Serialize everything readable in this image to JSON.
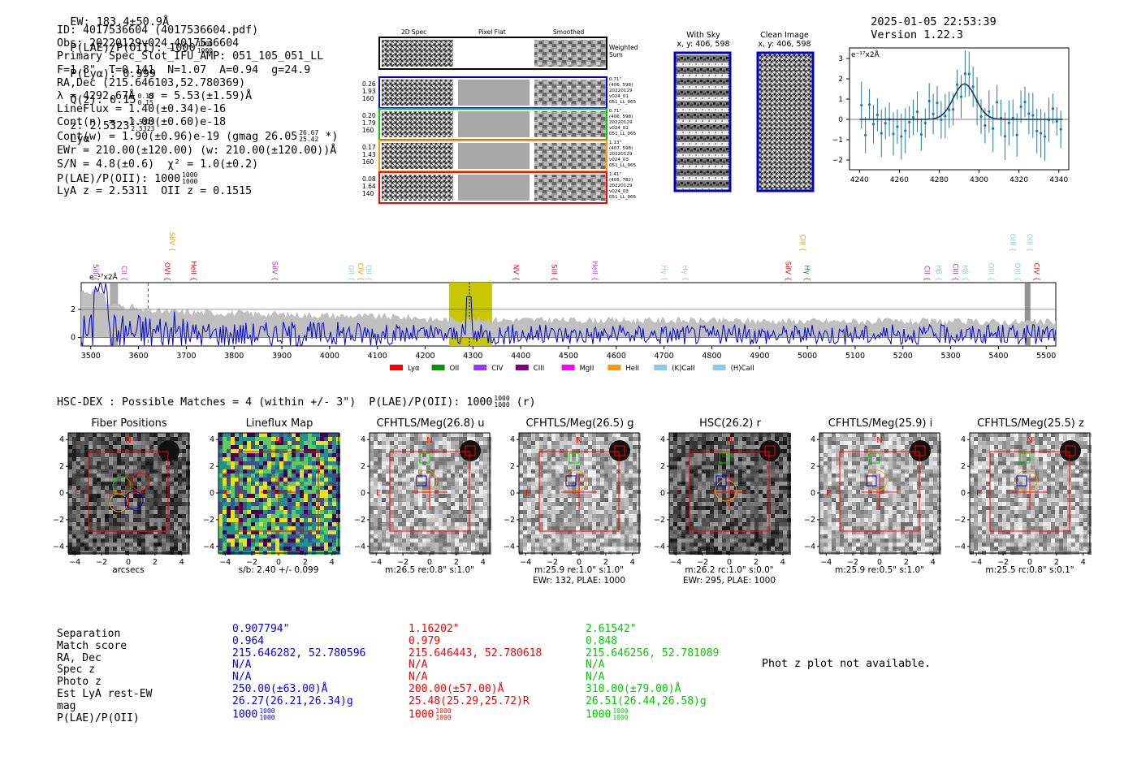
{
  "header": {
    "ew": "EW: 183.4±50.9Å",
    "plae_label": "P(LAE)/P(OII): 1000",
    "plae_hi": "1000",
    "plae_lo": "1000",
    "plya": "P(Lyα): 0.999",
    "qz_label": "Q(z): 0.15",
    "qz_hi": "0.15",
    "qz_lo": "0.15",
    "z_label": "z: 2.5323",
    "z_hi": "2.5323",
    "z_lo": "2.5323",
    "z_line": "Lyα",
    "timestamp": "2025-01-05 22:53:39",
    "version": "Version 1.22.3"
  },
  "info": {
    "id": "ID: 4017536604 (4017536604.pdf)",
    "obs": "Obs: 20220129v024_4017536604",
    "primary": "Primary Spec_Slot_IFU_AMP: 051_105_051_LL",
    "params": "F=1.8\"  T=0.141  N=1.07  A=0.94  g=24.9",
    "radec": "RA,Dec (215.646103,52.780369)",
    "lambda": "λ = 4292.67Å  σ = 5.53(±1.59)Å",
    "lineflux": "LineFlux = 1.40(±0.34)e-16",
    "contn": "Cont(n) = -1.00(±0.60)e-18",
    "contw": "Cont(w) = 1.90(±0.96)e-19 (gmag 26.05",
    "contw_hi": "26.67",
    "contw_lo": "25.42",
    "contw_tail": "*)",
    "ewr": "EWr = 210.00(±120.00) (w: 210.00(±120.00))Å",
    "sn": "S/N = 4.8(±0.6)  χ² = 1.0(±0.2)",
    "plae": "P(LAE)/P(OII): 1000",
    "plae_hi": "1000",
    "plae_lo": "1000",
    "lyaz": "LyA z = 2.5311  OII z = 0.1515"
  },
  "cutouts": {
    "col_2d": "2D Spec",
    "col_flat": "Pixel Flat",
    "col_smooth": "Smoothed",
    "weighted_sum": "Weighted Sum",
    "rows": [
      {
        "left": [
          "0.26",
          "1.93",
          "160"
        ],
        "right": [
          "0.71\"",
          "(406, 598)",
          "20220129",
          "v024_01",
          "051_LL_065"
        ],
        "color": "#0000cc"
      },
      {
        "left": [
          "0.20",
          "1.79",
          "160"
        ],
        "right": [
          "0.71\"",
          "(406, 598)",
          "20220129",
          "v024_02",
          "051_LL_065"
        ],
        "color": "#00cc00"
      },
      {
        "left": [
          "0.17",
          "1.43",
          "160"
        ],
        "right": [
          "1.13\"",
          "(407, 598)",
          "20220129",
          "v024_03",
          "051_LL_065"
        ],
        "color": "#ff9900"
      },
      {
        "left": [
          "0.08",
          "1.64",
          "140"
        ],
        "right": [
          "1.41\"",
          "(405, 782)",
          "20220129",
          "v024_03",
          "051_LL_065"
        ],
        "color": "#ff0000"
      }
    ]
  },
  "sky": {
    "with_sky": "With Sky",
    "with_sky_xy": "x, y: 406, 598",
    "clean": "Clean Image",
    "clean_xy": "x, y: 406, 598"
  },
  "zoom_chart": {
    "unit": "e⁻¹⁷x2Å",
    "xticks": [
      "4240",
      "4260",
      "4280",
      "4300",
      "4320",
      "4340"
    ],
    "yticks": [
      "3",
      "2",
      "1",
      "0",
      "−1",
      "−2"
    ]
  },
  "chart_data": {
    "type": "line",
    "title": "",
    "unit_label": "e⁻¹⁷x2Å",
    "xlim": [
      3480,
      5520
    ],
    "ylim": [
      -0.6,
      3.9
    ],
    "x_ticks": [
      3500,
      3600,
      3700,
      3800,
      3900,
      4000,
      4100,
      4200,
      4300,
      4400,
      4500,
      4600,
      4700,
      4800,
      4900,
      5000,
      5100,
      5200,
      5300,
      5400,
      5500
    ],
    "y_ticks": [
      0,
      2
    ],
    "highlight_range": [
      4250,
      4340
    ],
    "line_marker": 4292.67,
    "spectral_lines": [
      {
        "name": "SiII",
        "x": 3500,
        "color": "#9933cc",
        "level": "low"
      },
      {
        "name": "CII",
        "x": 3560,
        "color": "#cc33cc",
        "level": "low"
      },
      {
        "name": "SiIV",
        "x": 3660,
        "color": "#ff9900",
        "level": "high"
      },
      {
        "name": "OVI",
        "x": 3650,
        "color": "#ff0000",
        "level": "low"
      },
      {
        "name": "HeII",
        "x": 3705,
        "color": "#cc0000",
        "level": "low"
      },
      {
        "name": "SiIV",
        "x": 3875,
        "color": "#9933cc",
        "level": "low"
      },
      {
        "name": "OII",
        "x": 4035,
        "color": "#88ccee",
        "level": "low"
      },
      {
        "name": "CIV",
        "x": 4055,
        "color": "#ff9900",
        "level": "low"
      },
      {
        "name": "OII",
        "x": 4072,
        "color": "#88ccee",
        "level": "low"
      },
      {
        "name": "NV",
        "x": 4380,
        "color": "#ff0000",
        "level": "low"
      },
      {
        "name": "SiII",
        "x": 4460,
        "color": "#ff0000",
        "level": "low"
      },
      {
        "name": "HeII",
        "x": 4545,
        "color": "#cc33cc",
        "level": "low"
      },
      {
        "name": "Hγ",
        "x": 4690,
        "color": "#88ccee",
        "level": "low"
      },
      {
        "name": "Hγ",
        "x": 4735,
        "color": "#88ccee",
        "level": "low"
      },
      {
        "name": "SiIV",
        "x": 4950,
        "color": "#ff0000",
        "level": "low"
      },
      {
        "name": "CIII",
        "x": 4980,
        "color": "#ff9900",
        "level": "high"
      },
      {
        "name": "Hγ",
        "x": 4990,
        "color": "#009900",
        "level": "low"
      },
      {
        "name": "CII",
        "x": 5240,
        "color": "#9933cc",
        "level": "low"
      },
      {
        "name": "Hβ",
        "x": 5265,
        "color": "#88ccee",
        "level": "low"
      },
      {
        "name": "CIII",
        "x": 5300,
        "color": "#9933cc",
        "level": "low"
      },
      {
        "name": "Hβ",
        "x": 5320,
        "color": "#88ccee",
        "level": "low"
      },
      {
        "name": "OIII",
        "x": 5375,
        "color": "#88ccee",
        "level": "low"
      },
      {
        "name": "OIII",
        "x": 5420,
        "color": "#88ccee",
        "level": "high"
      },
      {
        "name": "OIII",
        "x": 5430,
        "color": "#88ccee",
        "level": "low"
      },
      {
        "name": "OIII",
        "x": 5455,
        "color": "#88ccee",
        "level": "high"
      },
      {
        "name": "CIV",
        "x": 5470,
        "color": "#ff0000",
        "level": "low"
      }
    ],
    "legend": [
      {
        "name": "Lyα",
        "color": "#ff0000"
      },
      {
        "name": "OII",
        "color": "#009900"
      },
      {
        "name": "CIV",
        "color": "#9933ff"
      },
      {
        "name": "CIII",
        "color": "#800080"
      },
      {
        "name": "MgII",
        "color": "#ff00ff"
      },
      {
        "name": "HeII",
        "color": "#ff9900"
      },
      {
        "name": "(K)CaII",
        "color": "#88ccee"
      },
      {
        "name": "(H)CaII",
        "color": "#88ccee"
      }
    ]
  },
  "matches_title": "HSC-DEX : Possible Matches = 4 (within +/- 3\")  P(LAE)/P(OII): 1000",
  "matches_frac": {
    "hi": "1000",
    "lo": "1000",
    "tail": "(r)"
  },
  "imaging_panels": [
    {
      "title": "Fiber Positions",
      "caption1": "arcsecs",
      "caption2": ""
    },
    {
      "title": "Lineflux Map",
      "caption1": "s/b: 2.40 +/- 0.099",
      "caption2": ""
    },
    {
      "title": "CFHTLS/Meg(26.8) u",
      "caption1": "m:26.5  re:0.8\"  s:1.0\"",
      "caption2": ""
    },
    {
      "title": "CFHTLS/Meg(26.5) g",
      "caption1": "m:25.9  re:1.0\"  s:1.0\"",
      "caption2": "EWr: 132, PLAE: 1000"
    },
    {
      "title": "HSC(26.2) r",
      "caption1": "m:26.2 rc:1.0\"  s:0.0\"",
      "caption2": "EWr: 295, PLAE: 1000"
    },
    {
      "title": "CFHTLS/Meg(25.9) i",
      "caption1": "m:25.9  re:0.5\"  s:1.0\"",
      "caption2": ""
    },
    {
      "title": "CFHTLS/Meg(25.5) z",
      "caption1": "m:25.5 rc:0.8\"  s:0.1\"",
      "caption2": ""
    }
  ],
  "panel_axes": {
    "yticks": [
      "4",
      "2",
      "0",
      "−2",
      "−4"
    ],
    "xticks": [
      "−4",
      "−2",
      "0",
      "2",
      "4"
    ],
    "north": "N",
    "east": "E"
  },
  "table": {
    "labels": [
      "Separation",
      "Match score",
      "RA, Dec",
      "Spec z",
      "Photo z",
      "Est LyA rest-EW",
      "mag",
      "P(LAE)/P(OII)"
    ],
    "cols": [
      {
        "color": "blue",
        "values": [
          "0.907794\"",
          "0.964",
          "215.646282, 52.780596",
          "N/A",
          "N/A",
          "250.00(±63.00)Å",
          "26.27(26.21,26.34)g",
          "1000"
        ],
        "hi": "1000",
        "lo": "1000"
      },
      {
        "color": "red",
        "values": [
          "1.16202\"",
          "0.979",
          "215.646443, 52.780618",
          "N/A",
          "N/A",
          "200.00(±57.00)Å",
          "25.48(25.29,25.72)R",
          "1000"
        ],
        "hi": "1000",
        "lo": "1000"
      },
      {
        "color": "green",
        "values": [
          "2.61542\"",
          "0.848",
          "215.646256, 52.781089",
          "N/A",
          "N/A",
          "310.00(±79.00)Å",
          "26.51(26.44,26.58)g",
          "1000"
        ],
        "hi": "1000",
        "lo": "1000"
      }
    ],
    "photz_note": "Phot z plot not available."
  }
}
